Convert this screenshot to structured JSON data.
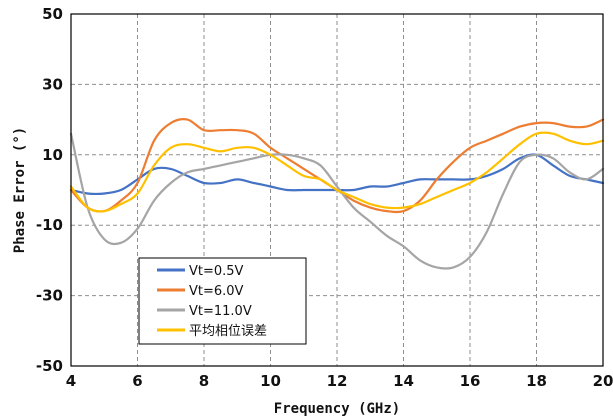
{
  "chart_data": {
    "type": "line",
    "xlabel": "Frequency (GHz)",
    "ylabel": "Phase Error (°)",
    "xlim": [
      4,
      20
    ],
    "ylim": [
      -50,
      50
    ],
    "xticks": [
      "4",
      "6",
      "8",
      "10",
      "12",
      "14",
      "16",
      "18",
      "20"
    ],
    "yticks": [
      "-50",
      "-30",
      "-10",
      "10",
      "30",
      "50"
    ],
    "grid": true,
    "legend_position": "bottom-left",
    "series": [
      {
        "name": "Vt=0.5V",
        "color": "#4472c4",
        "x": [
          4,
          4.5,
          5,
          5.5,
          6,
          6.5,
          7,
          7.5,
          8,
          8.5,
          9,
          9.5,
          10,
          10.5,
          11,
          11.5,
          12,
          12.5,
          13,
          13.5,
          14,
          14.5,
          15,
          15.5,
          16,
          16.5,
          17,
          17.5,
          18,
          18.5,
          19,
          19.5,
          20
        ],
        "y": [
          0,
          -1,
          -1,
          0,
          3,
          6,
          6,
          4,
          2,
          2,
          3,
          2,
          1,
          0,
          0,
          0,
          0,
          0,
          1,
          1,
          2,
          3,
          3,
          3,
          3,
          4,
          6,
          9,
          10,
          7,
          4,
          3,
          2
        ]
      },
      {
        "name": "Vt=6.0V",
        "color": "#ed7d31",
        "x": [
          4,
          4.5,
          5,
          5.5,
          6,
          6.5,
          7,
          7.5,
          8,
          8.5,
          9,
          9.5,
          10,
          10.5,
          11,
          11.5,
          12,
          12.5,
          13,
          13.5,
          14,
          14.5,
          15,
          15.5,
          16,
          16.5,
          17,
          17.5,
          18,
          18.5,
          19,
          19.5,
          20
        ],
        "y": [
          0,
          -5,
          -6,
          -3,
          2,
          14,
          19,
          20,
          17,
          17,
          17,
          16,
          12,
          9,
          6,
          3,
          0,
          -3,
          -5,
          -6,
          -6,
          -3,
          3,
          8,
          12,
          14,
          16,
          18,
          19,
          19,
          18,
          18,
          20
        ]
      },
      {
        "name": "Vt=11.0V",
        "color": "#a5a5a5",
        "x": [
          4,
          4.5,
          5,
          5.5,
          6,
          6.5,
          7,
          7.5,
          8,
          8.5,
          9,
          9.5,
          10,
          10.5,
          11,
          11.5,
          12,
          12.5,
          13,
          13.5,
          14,
          14.5,
          15,
          15.5,
          16,
          16.5,
          17,
          17.5,
          18,
          18.5,
          19,
          19.5,
          20
        ],
        "y": [
          16,
          -5,
          -14,
          -15,
          -11,
          -3,
          2,
          5,
          6,
          7,
          8,
          9,
          10,
          10,
          9,
          7,
          1,
          -5,
          -9,
          -13,
          -16,
          -20,
          -22,
          -22,
          -19,
          -12,
          -1,
          8,
          10,
          9,
          5,
          3,
          6
        ]
      },
      {
        "name": "平均相位误差",
        "color": "#ffc000",
        "x": [
          4,
          4.5,
          5,
          5.5,
          6,
          6.5,
          7,
          7.5,
          8,
          8.5,
          9,
          9.5,
          10,
          10.5,
          11,
          11.5,
          12,
          12.5,
          13,
          13.5,
          14,
          14.5,
          15,
          15.5,
          16,
          16.5,
          17,
          17.5,
          18,
          18.5,
          19,
          19.5,
          20
        ],
        "y": [
          1,
          -5,
          -6,
          -4,
          -1,
          7,
          12,
          13,
          12,
          11,
          12,
          12,
          10,
          7,
          4,
          3,
          0,
          -2,
          -4,
          -5,
          -5,
          -4,
          -2,
          0,
          2,
          5,
          9,
          13,
          16,
          16,
          14,
          13,
          14
        ]
      }
    ]
  }
}
